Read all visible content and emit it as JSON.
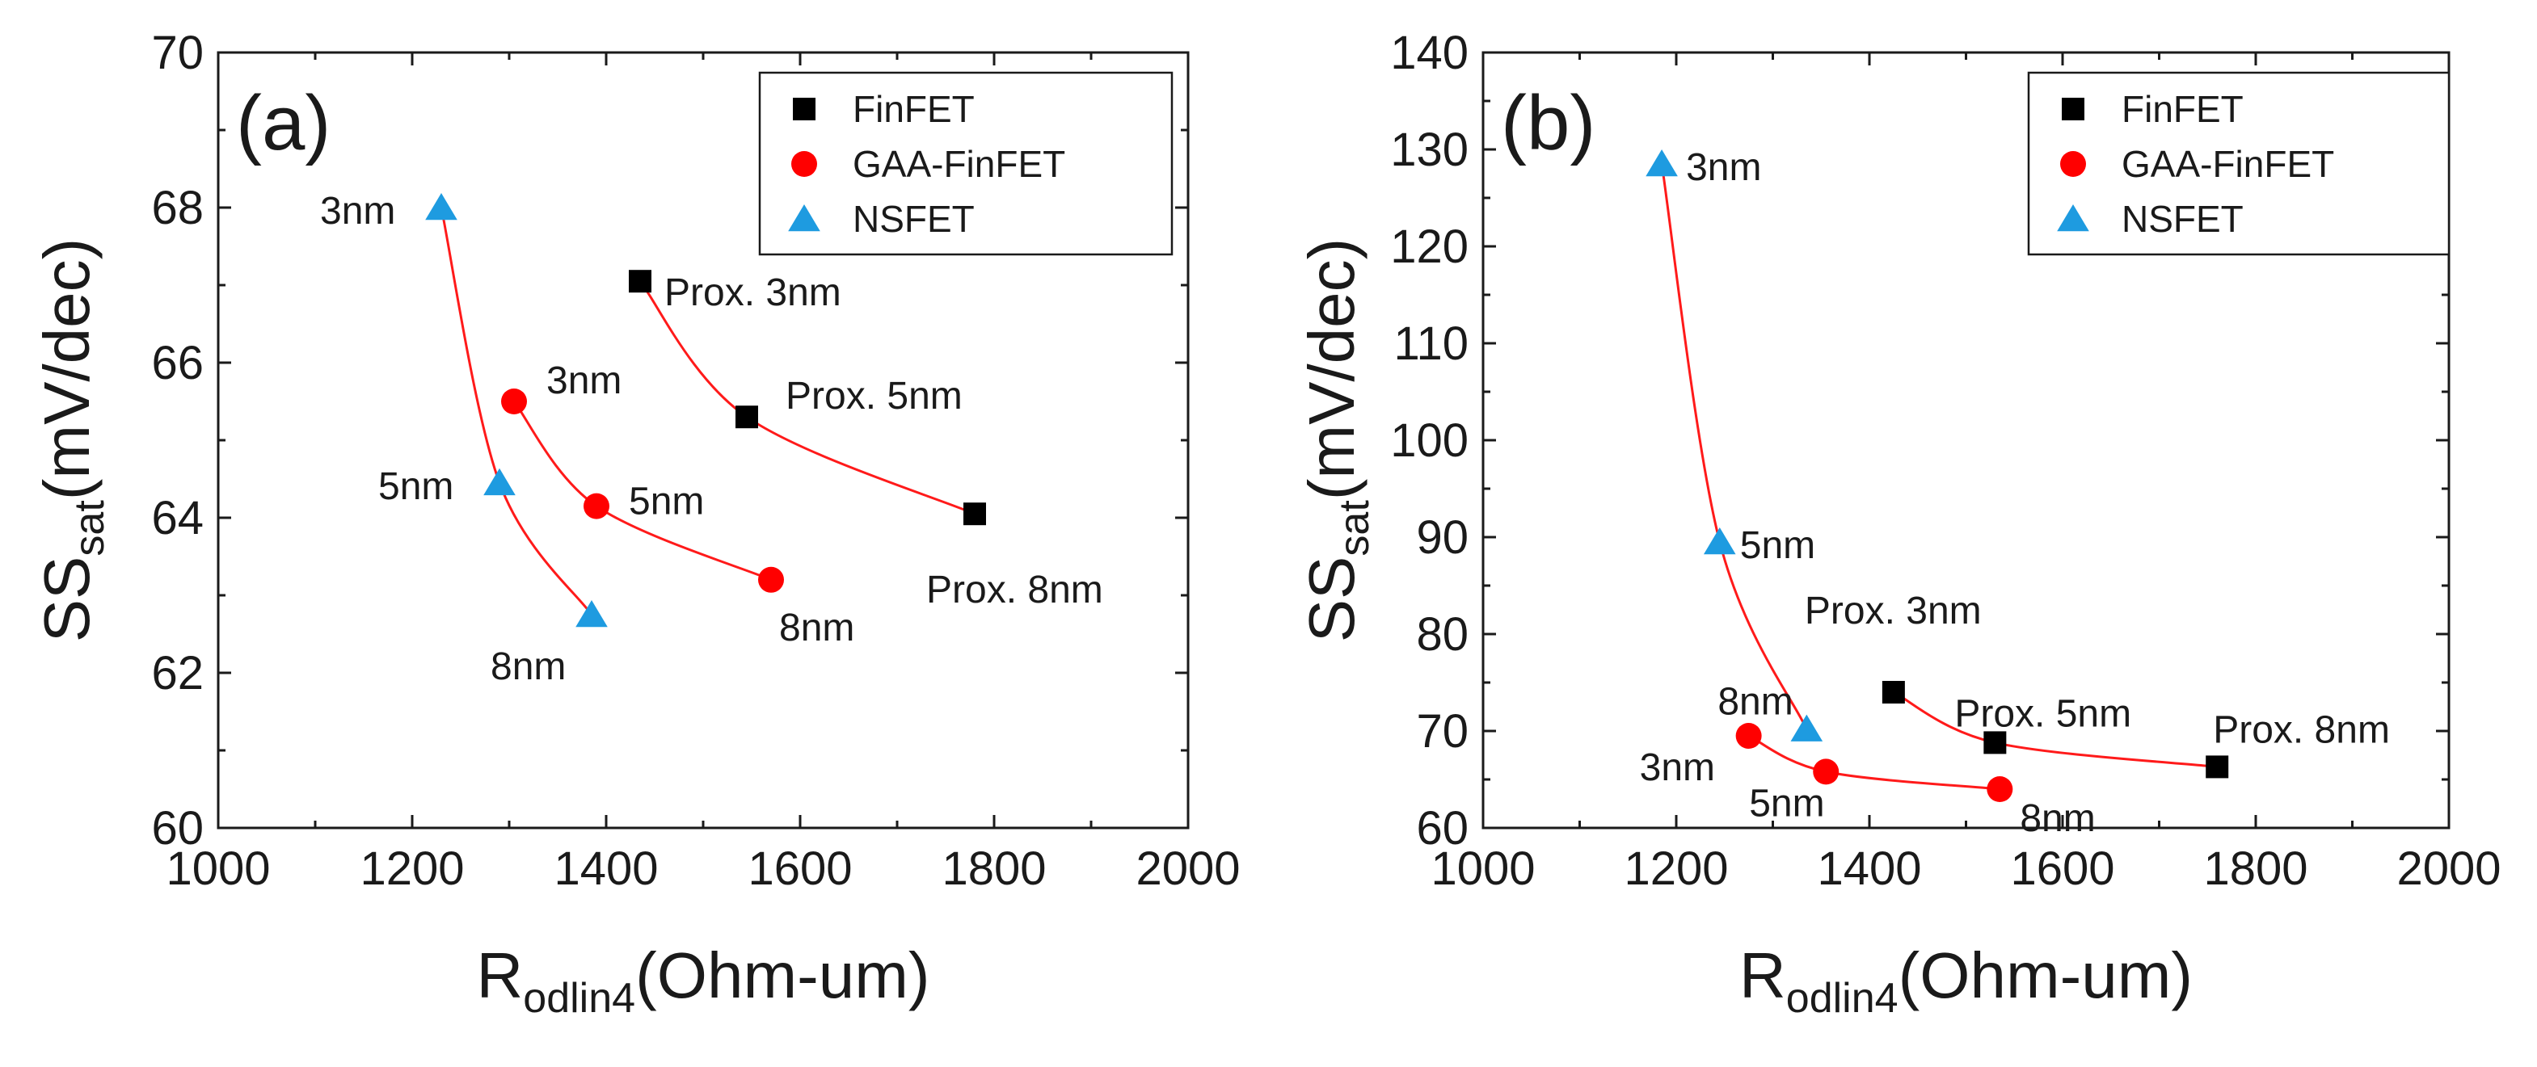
{
  "chart_data": [
    {
      "type": "scatter",
      "panel_label": "(a)",
      "xlabel_main": "R",
      "xlabel_sub": "odlin4",
      "xlabel_unit": "(Ohm-um)",
      "ylabel_main": "SS",
      "ylabel_sub": "sat",
      "ylabel_unit": "(mV/dec)",
      "xlim": [
        1000,
        2000
      ],
      "ylim": [
        60,
        70
      ],
      "xticks": [
        1000,
        1200,
        1400,
        1600,
        1800,
        2000
      ],
      "yticks": [
        60,
        62,
        64,
        66,
        68,
        70
      ],
      "grid": false,
      "legend_position": "top-right",
      "series": [
        {
          "name": "FinFET",
          "marker": "square",
          "color": "#000000",
          "points": [
            {
              "x": 1435,
              "y": 67.05,
              "label": "Prox. 3nm"
            },
            {
              "x": 1545,
              "y": 65.3,
              "label": "Prox. 5nm"
            },
            {
              "x": 1780,
              "y": 64.05,
              "label": "Prox. 8nm"
            }
          ]
        },
        {
          "name": "GAA-FinFET",
          "marker": "circle",
          "color": "#ff0000",
          "points": [
            {
              "x": 1305,
              "y": 65.5,
              "label": "3nm"
            },
            {
              "x": 1390,
              "y": 64.15,
              "label": "5nm"
            },
            {
              "x": 1570,
              "y": 63.2,
              "label": "8nm"
            }
          ]
        },
        {
          "name": "NSFET",
          "marker": "triangle",
          "color": "#1e9be0",
          "points": [
            {
              "x": 1230,
              "y": 68.0,
              "label": "3nm"
            },
            {
              "x": 1290,
              "y": 64.45,
              "label": "5nm"
            },
            {
              "x": 1385,
              "y": 62.75,
              "label": "8nm"
            }
          ]
        }
      ]
    },
    {
      "type": "scatter",
      "panel_label": "(b)",
      "xlabel_main": "R",
      "xlabel_sub": "odlin4",
      "xlabel_unit": "(Ohm-um)",
      "ylabel_main": "SS",
      "ylabel_sub": "sat",
      "ylabel_unit": "(mV/dec)",
      "xlim": [
        1000,
        2000
      ],
      "ylim": [
        60,
        140
      ],
      "xticks": [
        1000,
        1200,
        1400,
        1600,
        1800,
        2000
      ],
      "yticks": [
        60,
        70,
        80,
        90,
        100,
        110,
        120,
        130,
        140
      ],
      "grid": false,
      "legend_position": "top-right",
      "series": [
        {
          "name": "FinFET",
          "marker": "square",
          "color": "#000000",
          "points": [
            {
              "x": 1425,
              "y": 74.0,
              "label": "Prox. 3nm"
            },
            {
              "x": 1530,
              "y": 68.8,
              "label": "Prox. 5nm"
            },
            {
              "x": 1760,
              "y": 66.3,
              "label": "Prox. 8nm"
            }
          ]
        },
        {
          "name": "GAA-FinFET",
          "marker": "circle",
          "color": "#ff0000",
          "points": [
            {
              "x": 1275,
              "y": 69.5,
              "label": "3nm"
            },
            {
              "x": 1355,
              "y": 65.8,
              "label": "5nm"
            },
            {
              "x": 1535,
              "y": 64.0,
              "label": "8nm"
            }
          ]
        },
        {
          "name": "NSFET",
          "marker": "triangle",
          "color": "#1e9be0",
          "points": [
            {
              "x": 1185,
              "y": 128.5,
              "label": "3nm"
            },
            {
              "x": 1245,
              "y": 89.5,
              "label": "5nm"
            },
            {
              "x": 1335,
              "y": 70.2,
              "label": "8nm"
            }
          ]
        }
      ]
    }
  ]
}
